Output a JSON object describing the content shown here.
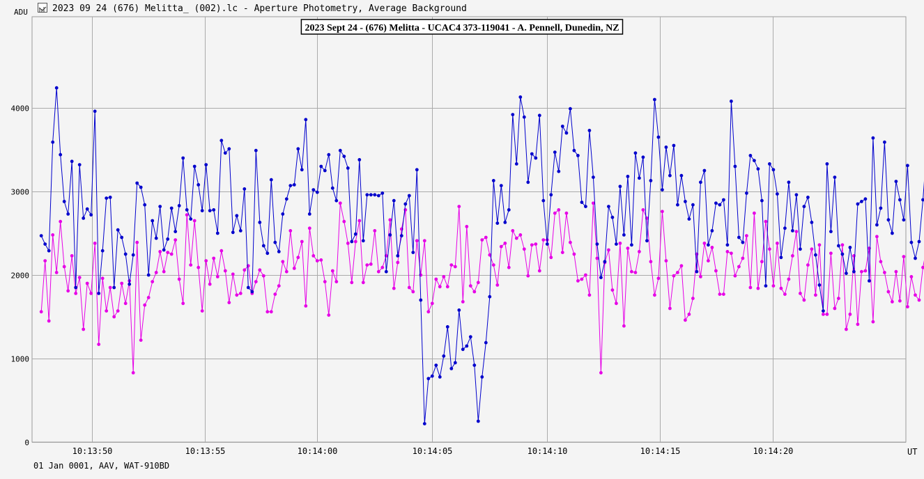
{
  "window": {
    "title": "2023 09 24 (676) Melitta_ (002).lc - Aperture Photometry, Average Background",
    "icon": "lightcurve-app-icon"
  },
  "footer_text": "01 Jan 0001, AAV, WAT-910BD",
  "chart_data": {
    "type": "line",
    "title": "2023 Sept 24 - (676) Melitta - UCAC4 373-119041 - A. Pennell, Dunedin, NZ",
    "xlabel": "UT",
    "ylabel": "ADU",
    "ylim": [
      0,
      4000
    ],
    "xlim": [
      -0.4,
      37.6
    ],
    "y_ticks": [
      0,
      1000,
      2000,
      3000,
      4000
    ],
    "x_ticks": [
      {
        "value": 2.2,
        "label": "10:13:50"
      },
      {
        "value": 7.1,
        "label": "10:13:55"
      },
      {
        "value": 12.0,
        "label": "10:14:00"
      },
      {
        "value": 17.0,
        "label": "10:14:05"
      },
      {
        "value": 22.0,
        "label": "10:14:10"
      },
      {
        "value": 26.9,
        "label": "10:14:15"
      },
      {
        "value": 31.8,
        "label": "10:14:20"
      }
    ],
    "grid": true,
    "colors": {
      "series1": "#0000cc",
      "series2": "#e600e6",
      "grid": "#aaaaaa",
      "background": "#f4f4f4"
    },
    "x_step": 0.1667,
    "series": [
      {
        "values": [
          2470,
          2370,
          2290,
          3590,
          4240,
          3440,
          2880,
          2730,
          3360,
          1850,
          3320,
          2680,
          2790,
          2720,
          3960,
          1780,
          2290,
          2920,
          2930,
          1850,
          2540,
          2450,
          2250,
          1890,
          2240,
          3100,
          3050,
          2840,
          2000,
          2650,
          2440,
          2820,
          2300,
          2430,
          2800,
          2520,
          2830,
          3400,
          2780,
          2670,
          3300,
          3080,
          2770,
          3320,
          2770,
          2780,
          2500,
          3610,
          3460,
          3510,
          2510,
          2710,
          2530,
          3030,
          1850,
          1800,
          3490,
          2630,
          2350,
          2260,
          3140,
          2390,
          2280,
          2730,
          2910,
          3070,
          3080,
          3510,
          3260,
          3860,
          2730,
          3020,
          2990,
          3300,
          3250,
          3440,
          3040,
          2890,
          3490,
          3420,
          3280,
          2400,
          2490,
          3380,
          2410,
          2960,
          2960,
          2960,
          2950,
          2980,
          2040,
          2480,
          2890,
          2230,
          2470,
          2850,
          2950,
          2270,
          3260,
          1700,
          220,
          760,
          790,
          920,
          780,
          1030,
          1380,
          880,
          950,
          1580,
          1110,
          1150,
          1260,
          920,
          250,
          780,
          1190,
          1740,
          3130,
          2620,
          3070,
          2630,
          2780,
          3920,
          3330,
          4130,
          3890,
          3110,
          3450,
          3400,
          3910,
          2890,
          2370,
          2960,
          3470,
          3240,
          3780,
          3700,
          3990,
          3490,
          3430,
          2870,
          2820,
          3730,
          3170,
          2370,
          1970,
          2160,
          2820,
          2690,
          2370,
          3060,
          2480,
          3180,
          2360,
          3460,
          3160,
          3410,
          2410,
          3130,
          4100,
          3650,
          3020,
          3530,
          3190,
          3550,
          2840,
          3190,
          2880,
          2670,
          2840,
          2040,
          3110,
          3250,
          2360,
          2530,
          2860,
          2840,
          2900,
          2360,
          4080,
          3300,
          2450,
          2390,
          2980,
          3430,
          3370,
          3270,
          2890,
          1870,
          3330,
          3260,
          2970,
          2210,
          2560,
          3110,
          2530,
          2960,
          2310,
          2820,
          2930,
          2630,
          2240,
          1880,
          1570,
          3330,
          2520,
          3170,
          2350,
          2250,
          2020,
          2330,
          2040,
          2850,
          2880,
          2910,
          1930,
          3640,
          2600,
          2800,
          3590,
          2660,
          2500,
          3120,
          2900,
          2660,
          3310,
          2390,
          2200,
          2400,
          2900,
          3520,
          3660,
          1800,
          2300,
          2270,
          2460,
          3590,
          2080,
          2490,
          2560,
          2770,
          2230,
          2550
        ]
      },
      {
        "values": [
          1560,
          2170,
          1450,
          2480,
          2030,
          2640,
          2100,
          1810,
          2230,
          1780,
          1970,
          1350,
          1900,
          1780,
          2380,
          1170,
          1960,
          1570,
          1850,
          1500,
          1570,
          1900,
          1660,
          1930,
          830,
          2390,
          1220,
          1640,
          1730,
          1920,
          2030,
          2280,
          2040,
          2270,
          2250,
          2420,
          1950,
          1660,
          2720,
          2120,
          2650,
          2090,
          1570,
          2170,
          1890,
          2200,
          1980,
          2290,
          2050,
          1670,
          2010,
          1760,
          1780,
          2060,
          2110,
          1780,
          1920,
          2060,
          1990,
          1560,
          1560,
          1770,
          1870,
          2160,
          2040,
          2530,
          2080,
          2210,
          2400,
          1630,
          2560,
          2230,
          2170,
          2180,
          1920,
          1520,
          2050,
          1920,
          2860,
          2640,
          2380,
          1910,
          2400,
          2650,
          1910,
          2120,
          2130,
          2530,
          2040,
          2090,
          2230,
          2660,
          1840,
          2150,
          2550,
          2780,
          1850,
          1800,
          2410,
          2000,
          2410,
          1560,
          1660,
          1950,
          1860,
          1980,
          1860,
          2120,
          2100,
          2820,
          1680,
          2580,
          1870,
          1800,
          1910,
          2420,
          2450,
          2240,
          2120,
          1880,
          2340,
          2380,
          2090,
          2530,
          2440,
          2480,
          2310,
          1990,
          2360,
          2370,
          2050,
          2420,
          2420,
          2210,
          2740,
          2780,
          2270,
          2740,
          2390,
          2250,
          1930,
          1950,
          2000,
          1760,
          2860,
          2200,
          830,
          2150,
          2300,
          1820,
          1660,
          2380,
          1390,
          2320,
          2040,
          2030,
          2280,
          2780,
          2680,
          2160,
          1760,
          1960,
          2760,
          2170,
          1600,
          1990,
          2030,
          2110,
          1460,
          1530,
          1720,
          2250,
          1980,
          2380,
          2170,
          2330,
          2050,
          1770,
          1770,
          2280,
          2260,
          1990,
          2100,
          2200,
          2470,
          1850,
          2740,
          1840,
          2160,
          2640,
          2310,
          1870,
          2380,
          1840,
          1770,
          1950,
          2230,
          2520,
          1780,
          1700,
          2120,
          2310,
          1760,
          2360,
          1530,
          1530,
          2260,
          1600,
          1720,
          2360,
          1350,
          1530,
          2230,
          1410,
          2040,
          2050,
          2320,
          1440,
          2460,
          2160,
          2030,
          1800,
          1680,
          2040,
          1690,
          2220,
          1620,
          1980,
          1760,
          1700,
          2090,
          2330,
          1710,
          1520,
          2050,
          2320,
          1990,
          2070,
          2350,
          1820,
          1710,
          2170,
          2290
        ]
      }
    ]
  }
}
